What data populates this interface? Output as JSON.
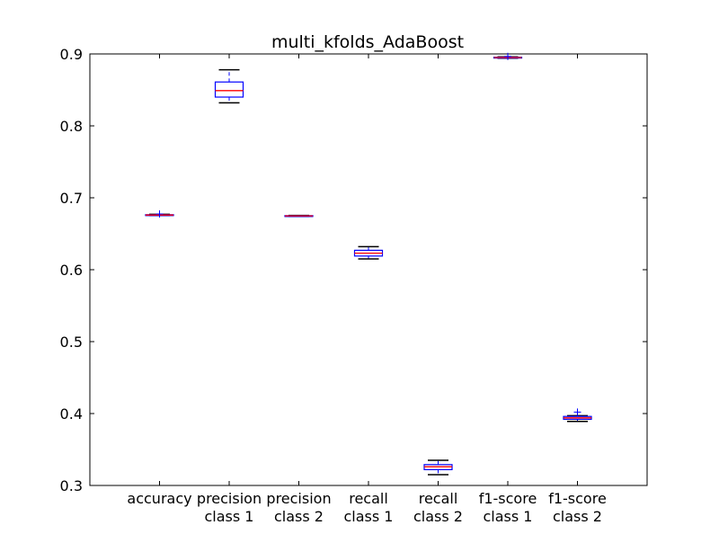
{
  "chart_data": {
    "type": "box",
    "title": "multi_kfolds_AdaBoost",
    "xlabel": "",
    "ylabel": "",
    "ylim": [
      0.3,
      0.9
    ],
    "yticks": [
      "0.3",
      "0.4",
      "0.5",
      "0.6",
      "0.7",
      "0.8",
      "0.9"
    ],
    "grid": false,
    "colors": {
      "box": "#0000ff",
      "median": "#ff0000",
      "whisker": "#000000",
      "flier": "#0000ff",
      "axes": "#000000"
    },
    "boxes": [
      {
        "label_lines": [
          "accuracy"
        ],
        "whisker_low": 0.6755,
        "q1": 0.6755,
        "median": 0.676,
        "q3": 0.6765,
        "whisker_high": 0.677,
        "fliers": [
          0.6775
        ]
      },
      {
        "label_lines": [
          "precision",
          "class 1"
        ],
        "whisker_low": 0.832,
        "q1": 0.84,
        "median": 0.849,
        "q3": 0.861,
        "whisker_high": 0.878,
        "fliers": []
      },
      {
        "label_lines": [
          "precision",
          "class 2"
        ],
        "whisker_low": 0.674,
        "q1": 0.6745,
        "median": 0.6748,
        "q3": 0.6752,
        "whisker_high": 0.6755,
        "fliers": []
      },
      {
        "label_lines": [
          "recall",
          "class 1"
        ],
        "whisker_low": 0.615,
        "q1": 0.619,
        "median": 0.623,
        "q3": 0.627,
        "whisker_high": 0.632,
        "fliers": []
      },
      {
        "label_lines": [
          "recall",
          "class 2"
        ],
        "whisker_low": 0.315,
        "q1": 0.322,
        "median": 0.326,
        "q3": 0.329,
        "whisker_high": 0.335,
        "fliers": []
      },
      {
        "label_lines": [
          "f1-score",
          "class 1"
        ],
        "whisker_low": 0.894,
        "q1": 0.8945,
        "median": 0.895,
        "q3": 0.8955,
        "whisker_high": 0.896,
        "fliers": [
          0.8965
        ]
      },
      {
        "label_lines": [
          "f1-score",
          "class 2"
        ],
        "whisker_low": 0.389,
        "q1": 0.392,
        "median": 0.394,
        "q3": 0.396,
        "whisker_high": 0.397,
        "fliers": [
          0.402
        ]
      }
    ]
  }
}
